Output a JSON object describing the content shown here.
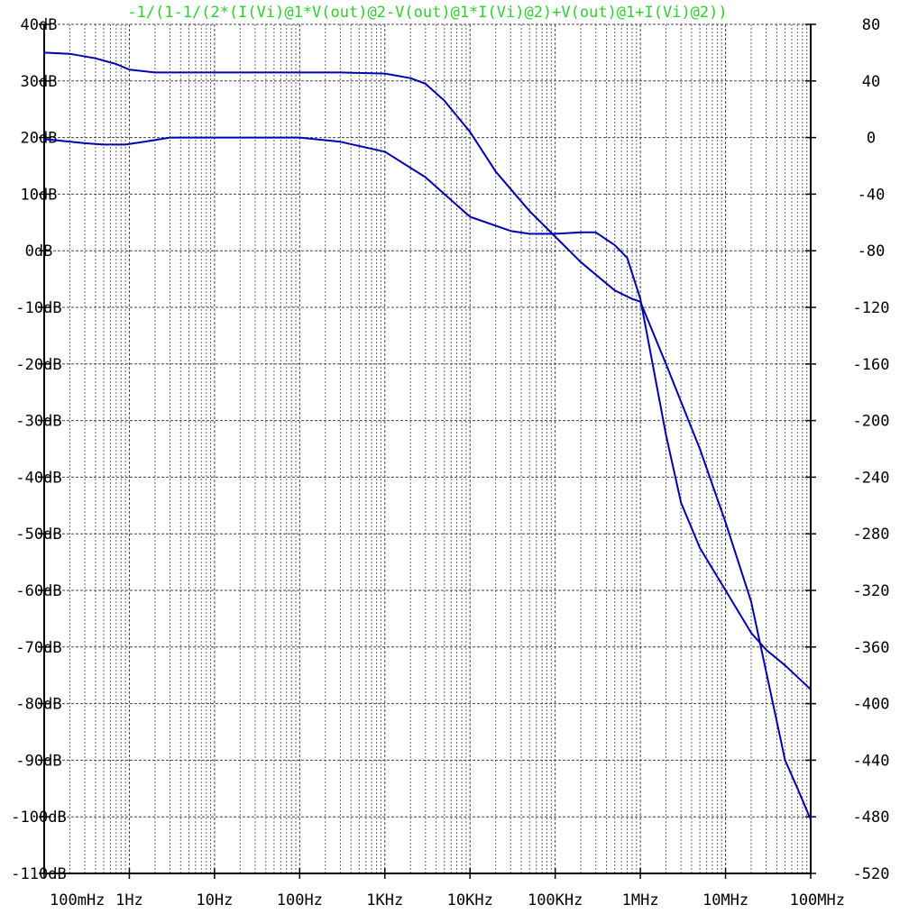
{
  "chart_data": {
    "type": "line",
    "title": "-1/(1-1/(2*(I(Vi)@1*V(out)@2-V(out)@1*I(Vi)@2)+V(out)@1+I(Vi)@2))",
    "x_scale": "log",
    "xlim_hz": [
      0.1,
      100000000
    ],
    "x_tick_labels": [
      "100mHz",
      "1Hz",
      "10Hz",
      "100Hz",
      "1KHz",
      "10KHz",
      "100KHz",
      "1MHz",
      "10MHz",
      "100MHz"
    ],
    "x_tick_values_hz": [
      0.1,
      1,
      10,
      100,
      1000,
      10000,
      100000,
      1000000,
      10000000,
      100000000
    ],
    "ylim_left_db": [
      -110,
      40
    ],
    "y_left_tick_labels": [
      "40dB",
      "30dB",
      "20dB",
      "10dB",
      "0dB",
      "-10dB",
      "-20dB",
      "-30dB",
      "-40dB",
      "-50dB",
      "-60dB",
      "-70dB",
      "-80dB",
      "-90dB",
      "-100dB",
      "-110dB"
    ],
    "y_left_tick_values": [
      40,
      30,
      20,
      10,
      0,
      -10,
      -20,
      -30,
      -40,
      -50,
      -60,
      -70,
      -80,
      -90,
      -100,
      -110
    ],
    "ylim_right_deg": [
      -520,
      80
    ],
    "y_right_tick_labels": [
      "80",
      "40",
      "0",
      "-40",
      "-80",
      "-120",
      "-160",
      "-200",
      "-240",
      "-280",
      "-320",
      "-360",
      "-400",
      "-440",
      "-480",
      "-520"
    ],
    "y_right_tick_values": [
      80,
      40,
      0,
      -40,
      -80,
      -120,
      -160,
      -200,
      -240,
      -280,
      -320,
      -360,
      -400,
      -440,
      -480,
      -520
    ],
    "grid": true,
    "series": [
      {
        "axis": "left",
        "color": "#0000b0",
        "dash": "solid",
        "x": [
          0.1,
          0.2,
          0.4,
          0.7,
          1,
          2,
          5,
          10,
          30,
          100,
          300,
          1000,
          2000,
          3000,
          5000,
          10000,
          20000,
          50000,
          100000,
          200000,
          500000,
          800000,
          1000000,
          2000000,
          5000000,
          10000000,
          20000000,
          50000000,
          70000000,
          100000000
        ],
        "y": [
          35,
          34.8,
          34,
          33,
          32,
          31.5,
          31.5,
          31.5,
          31.5,
          31.5,
          31.5,
          31.3,
          30.5,
          29.5,
          26.5,
          21,
          14,
          7,
          2.5,
          -2,
          -7,
          -8.5,
          -9,
          -20,
          -35,
          -48,
          -62,
          -90,
          -95,
          -100.5
        ]
      },
      {
        "axis": "right",
        "color": "#0000b0",
        "dash": "solid",
        "x": [
          0.1,
          0.3,
          0.5,
          0.9,
          1.5,
          3,
          10,
          100,
          300,
          1000,
          3000,
          10000,
          30000,
          50000,
          100000,
          200000,
          300000,
          500000,
          700000,
          1000000,
          2000000,
          3000000,
          5000000,
          10000000,
          20000000,
          30000000,
          50000000,
          100000000
        ],
        "y": [
          -1,
          -4,
          -5,
          -5,
          -3,
          0,
          0,
          0,
          -3,
          -10,
          -28,
          -56,
          -66,
          -68,
          -68,
          -67,
          -67,
          -76,
          -85,
          -114,
          -210,
          -258,
          -290,
          -320,
          -350,
          -362,
          -373,
          -390
        ]
      }
    ]
  }
}
